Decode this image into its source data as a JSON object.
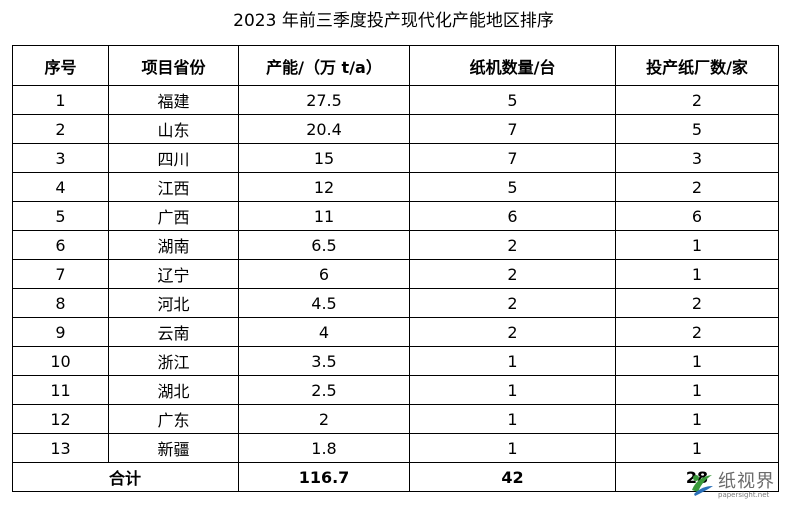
{
  "title": "2023 年前三季度投产现代化产能地区排序",
  "table": {
    "headers": [
      "序号",
      "项目省份",
      "产能/（万 t/a）",
      "纸机数量/台",
      "投产纸厂数/家"
    ],
    "rows": [
      [
        "1",
        "福建",
        "27.5",
        "5",
        "2"
      ],
      [
        "2",
        "山东",
        "20.4",
        "7",
        "5"
      ],
      [
        "3",
        "四川",
        "15",
        "7",
        "3"
      ],
      [
        "4",
        "江西",
        "12",
        "5",
        "2"
      ],
      [
        "5",
        "广西",
        "11",
        "6",
        "6"
      ],
      [
        "6",
        "湖南",
        "6.5",
        "2",
        "1"
      ],
      [
        "7",
        "辽宁",
        "6",
        "2",
        "1"
      ],
      [
        "8",
        "河北",
        "4.5",
        "2",
        "2"
      ],
      [
        "9",
        "云南",
        "4",
        "2",
        "2"
      ],
      [
        "10",
        "浙江",
        "3.5",
        "1",
        "1"
      ],
      [
        "11",
        "湖北",
        "2.5",
        "1",
        "1"
      ],
      [
        "12",
        "广东",
        "2",
        "1",
        "1"
      ],
      [
        "13",
        "新疆",
        "1.8",
        "1",
        "1"
      ]
    ],
    "total": {
      "label": "合计",
      "capacity": "116.7",
      "machines": "42",
      "mills": "28"
    }
  },
  "watermark": {
    "text": "纸视界",
    "url": "papersight.net",
    "colors": {
      "green": "#3a9a3a",
      "blue": "#2a6fb8",
      "gray": "#6b6b6b"
    }
  }
}
